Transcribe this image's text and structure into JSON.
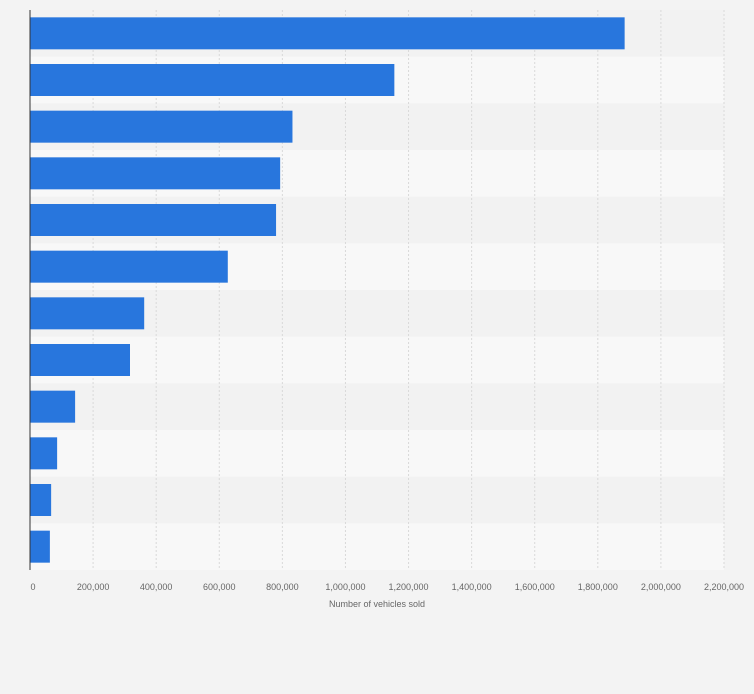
{
  "chart_data": {
    "type": "bar",
    "orientation": "horizontal",
    "categories": [
      "",
      "",
      "",
      "",
      "",
      "",
      "",
      "",
      "",
      "",
      "",
      ""
    ],
    "values": [
      1885000,
      1155000,
      832000,
      793000,
      780000,
      627000,
      362000,
      317000,
      143000,
      86000,
      67000,
      63000
    ],
    "title": "",
    "xlabel": "Number of vehicles sold",
    "ylabel": "",
    "xlim": [
      0,
      2200000
    ],
    "x_ticks": [
      0,
      200000,
      400000,
      600000,
      800000,
      1000000,
      1200000,
      1400000,
      1600000,
      1800000,
      2000000,
      2200000
    ],
    "x_tick_labels": [
      "0",
      "200,000",
      "400,000",
      "600,000",
      "800,000",
      "1,000,000",
      "1,200,000",
      "1,400,000",
      "1,600,000",
      "1,800,000",
      "2,000,000",
      "2,200,000"
    ],
    "grid": true,
    "legend": "none",
    "bar_color": "#2876dd",
    "row_colors": [
      "#f2f2f2",
      "#f8f8f8"
    ],
    "axis_label_color": "#666666",
    "grid_color": "#d9d9d9"
  }
}
